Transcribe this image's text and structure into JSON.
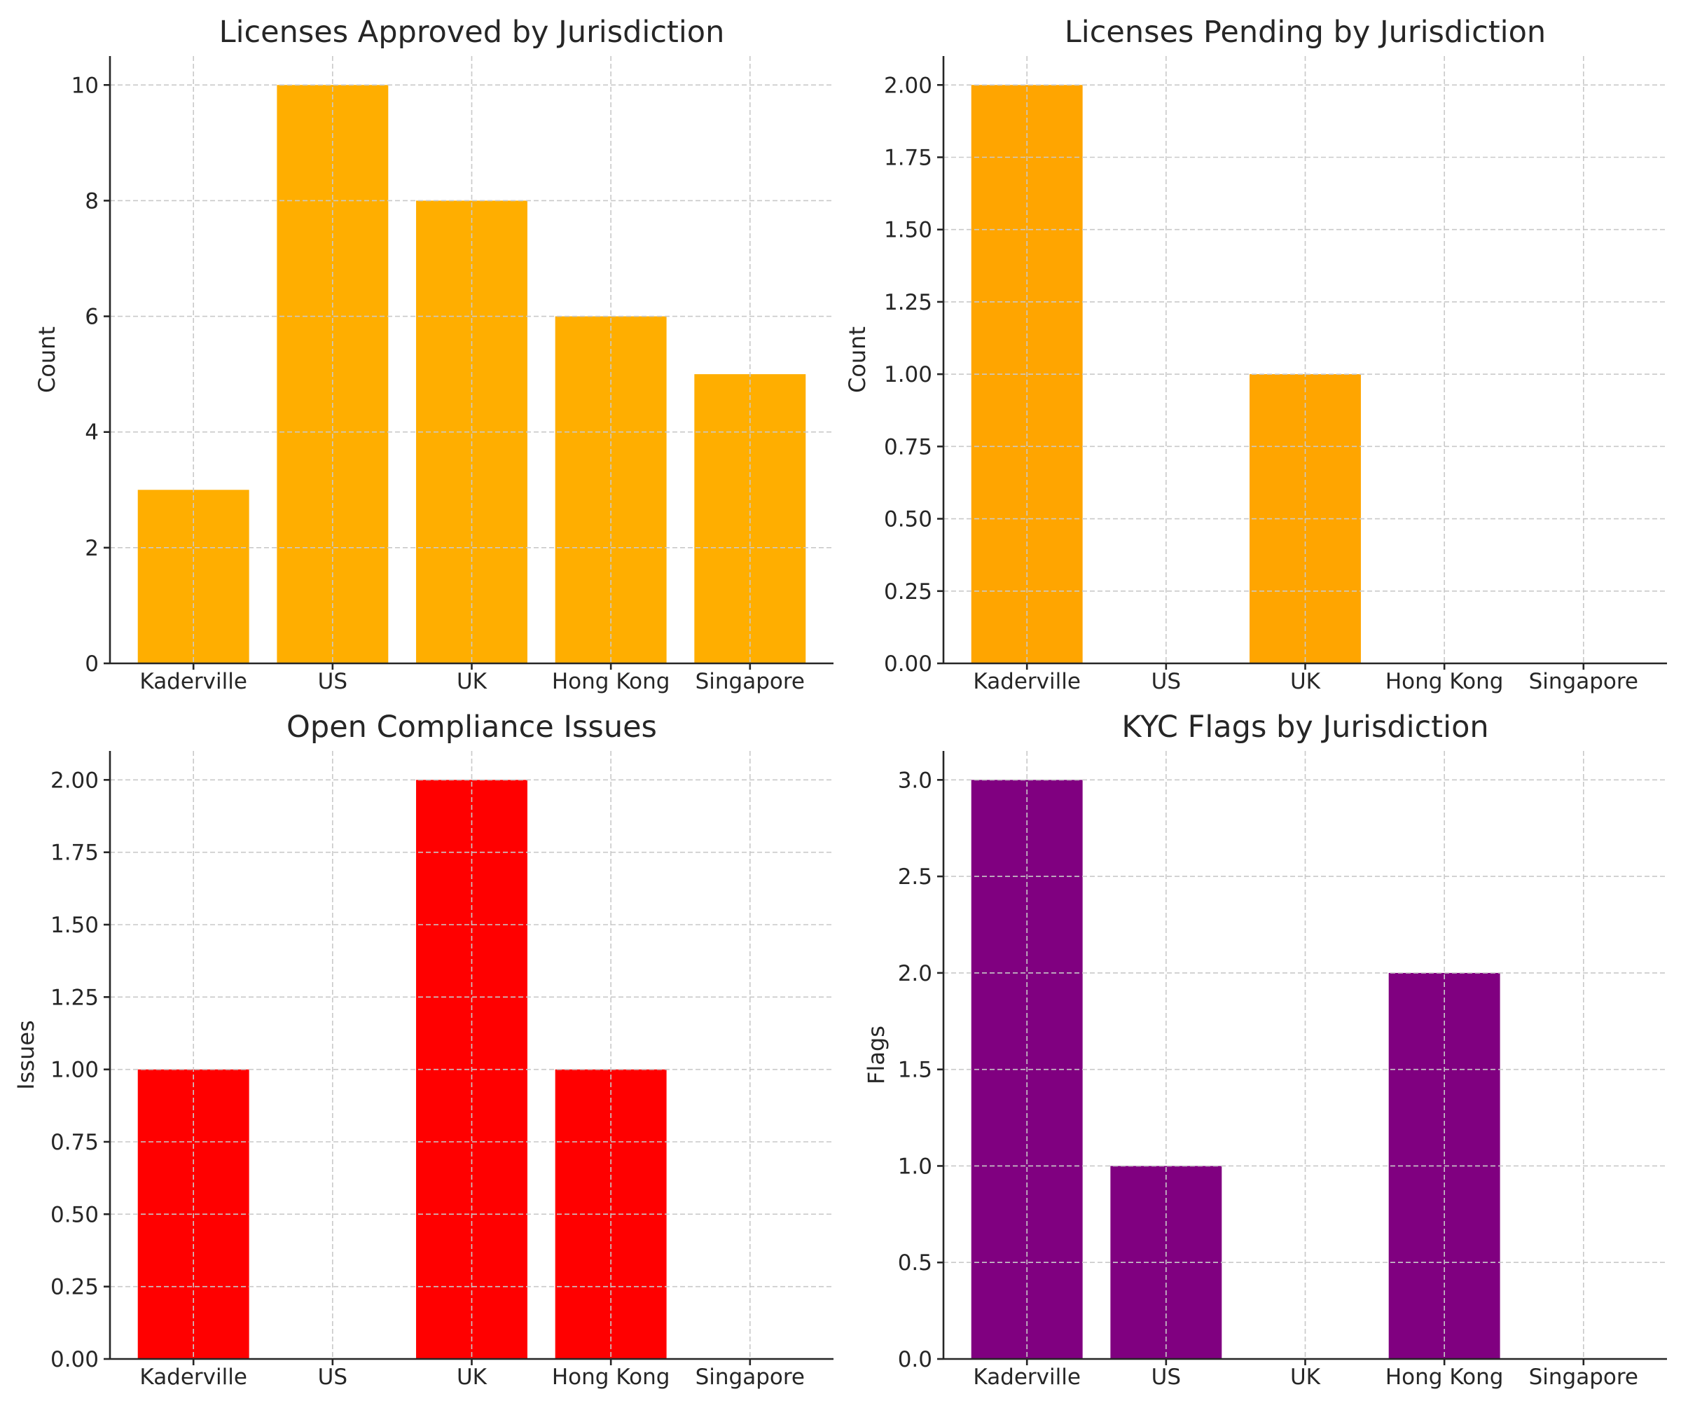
{
  "chart_data": [
    {
      "type": "bar",
      "title": "Licenses Approved by Jurisdiction",
      "xlabel": "",
      "ylabel": "Count",
      "categories": [
        "Kaderville",
        "US",
        "UK",
        "Hong Kong",
        "Singapore"
      ],
      "values": [
        3,
        10,
        8,
        6,
        5
      ],
      "ylim": [
        0,
        10.5
      ],
      "yticks": [
        0,
        2,
        4,
        6,
        8,
        10
      ],
      "ytick_decimals": 0,
      "color": "#ffae00",
      "grid": true
    },
    {
      "type": "bar",
      "title": "Licenses Pending by Jurisdiction",
      "xlabel": "",
      "ylabel": "Count",
      "categories": [
        "Kaderville",
        "US",
        "UK",
        "Hong Kong",
        "Singapore"
      ],
      "values": [
        2,
        0,
        1,
        0,
        0
      ],
      "ylim": [
        0,
        2.1
      ],
      "yticks": [
        0,
        0.25,
        0.5,
        0.75,
        1.0,
        1.25,
        1.5,
        1.75,
        2.0
      ],
      "ytick_decimals": 2,
      "color": "#ffa500",
      "grid": true
    },
    {
      "type": "bar",
      "title": "Open Compliance Issues",
      "xlabel": "",
      "ylabel": "Issues",
      "categories": [
        "Kaderville",
        "US",
        "UK",
        "Hong Kong",
        "Singapore"
      ],
      "values": [
        1,
        0,
        2,
        1,
        0
      ],
      "ylim": [
        0,
        2.1
      ],
      "yticks": [
        0,
        0.25,
        0.5,
        0.75,
        1.0,
        1.25,
        1.5,
        1.75,
        2.0
      ],
      "ytick_decimals": 2,
      "color": "#ff0000",
      "grid": true
    },
    {
      "type": "bar",
      "title": "KYC Flags by Jurisdiction",
      "xlabel": "",
      "ylabel": "Flags",
      "categories": [
        "Kaderville",
        "US",
        "UK",
        "Hong Kong",
        "Singapore"
      ],
      "values": [
        3,
        1,
        0,
        2,
        0
      ],
      "ylim": [
        0,
        3.15
      ],
      "yticks": [
        0,
        0.5,
        1.0,
        1.5,
        2.0,
        2.5,
        3.0
      ],
      "ytick_decimals": 1,
      "color": "#800080",
      "grid": true
    }
  ]
}
